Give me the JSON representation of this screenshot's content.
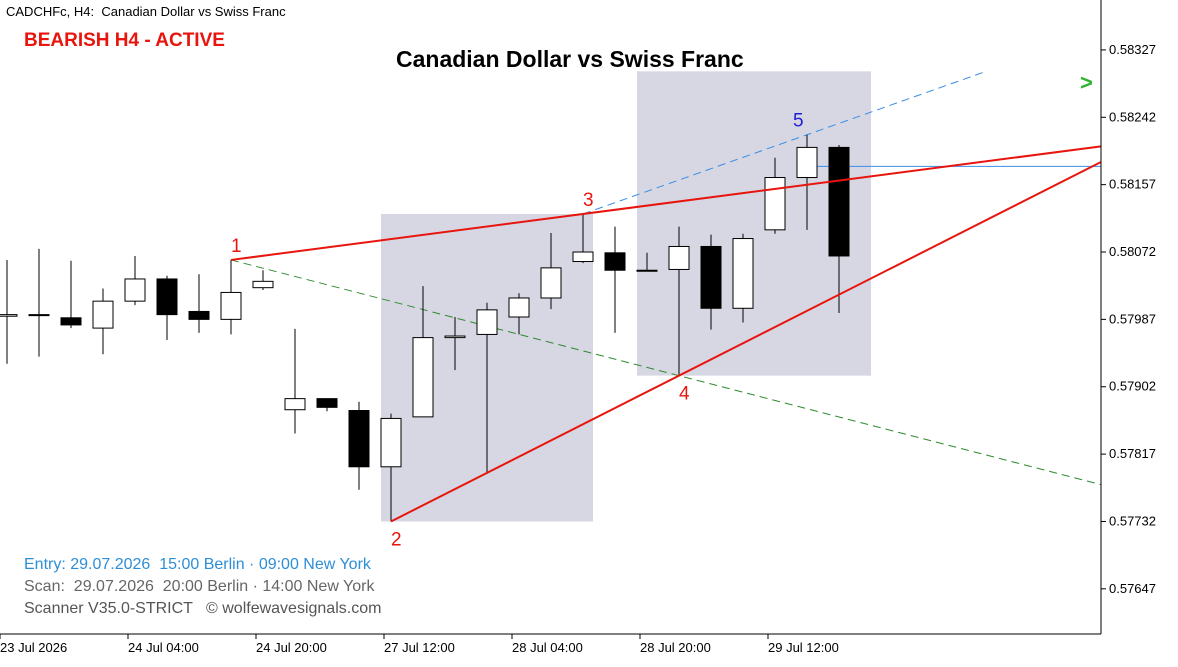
{
  "header": {
    "symbol": "CADCHFc, H4:",
    "name": "Canadian Dollar vs Swiss Franc"
  },
  "signal": {
    "text": "BEARISH H4 - ACTIVE",
    "color": "#e8150e"
  },
  "info": {
    "entry": "Entry: 29.07.2026  15:00 Berlin · 09:00 New York",
    "scan": "Scan:  29.07.2026  20:00 Berlin · 14:00 New York",
    "version": "Scanner V35.0-STRICT   © wolfewavesignals.com"
  },
  "colors": {
    "wave_lines": "#e8150e",
    "projection_1_4": "#2e8b2e",
    "projection_3_5": "#3a8ee6",
    "target_line": "#3a8ee6",
    "zones": "#d3d3e0",
    "arrow": "#2fb52f"
  },
  "arrow_icon": "green-chevron-right",
  "chart_data": {
    "type": "candlestick",
    "title": "Canadian Dollar vs Swiss Franc",
    "ylim": [
      0.5759,
      0.5839
    ],
    "y_ticks": [
      "0.58327",
      "0.58242",
      "0.58157",
      "0.58072",
      "0.57987",
      "0.57902",
      "0.57817",
      "0.57732",
      "0.57647"
    ],
    "x_ticks": [
      {
        "label": "23 Jul 2026",
        "index": 0
      },
      {
        "label": "24 Jul 04:00",
        "index": 4
      },
      {
        "label": "24 Jul 20:00",
        "index": 8
      },
      {
        "label": "27 Jul 12:00",
        "index": 12
      },
      {
        "label": "28 Jul 04:00",
        "index": 16
      },
      {
        "label": "28 Jul 20:00",
        "index": 20
      },
      {
        "label": "29 Jul 12:00",
        "index": 24
      }
    ],
    "candles": [
      {
        "o": 0.57991,
        "h": 0.58062,
        "l": 0.57931,
        "c": 0.57993
      },
      {
        "o": 0.57993,
        "h": 0.58076,
        "l": 0.5794,
        "c": 0.57993
      },
      {
        "o": 0.57989,
        "h": 0.58061,
        "l": 0.57976,
        "c": 0.5798
      },
      {
        "o": 0.57976,
        "h": 0.58026,
        "l": 0.57943,
        "c": 0.5801
      },
      {
        "o": 0.5801,
        "h": 0.58067,
        "l": 0.58005,
        "c": 0.58038
      },
      {
        "o": 0.58038,
        "h": 0.58042,
        "l": 0.57961,
        "c": 0.57993
      },
      {
        "o": 0.57997,
        "h": 0.58044,
        "l": 0.5797,
        "c": 0.57987
      },
      {
        "o": 0.57987,
        "h": 0.58062,
        "l": 0.57968,
        "c": 0.58021
      },
      {
        "o": 0.58027,
        "h": 0.58049,
        "l": 0.58024,
        "c": 0.58035
      },
      {
        "o": 0.57873,
        "h": 0.57975,
        "l": 0.57843,
        "c": 0.57887
      },
      {
        "o": 0.57887,
        "h": 0.57887,
        "l": 0.57871,
        "c": 0.57876
      },
      {
        "o": 0.57872,
        "h": 0.57883,
        "l": 0.57772,
        "c": 0.57801
      },
      {
        "o": 0.57801,
        "h": 0.57868,
        "l": 0.57732,
        "c": 0.57862
      },
      {
        "o": 0.57864,
        "h": 0.58029,
        "l": 0.57864,
        "c": 0.57964
      },
      {
        "o": 0.57964,
        "h": 0.5799,
        "l": 0.57923,
        "c": 0.57966
      },
      {
        "o": 0.57968,
        "h": 0.58008,
        "l": 0.57792,
        "c": 0.57999
      },
      {
        "o": 0.5799,
        "h": 0.5802,
        "l": 0.57968,
        "c": 0.58014
      },
      {
        "o": 0.58014,
        "h": 0.58096,
        "l": 0.58,
        "c": 0.58052
      },
      {
        "o": 0.5806,
        "h": 0.5812,
        "l": 0.58058,
        "c": 0.58072
      },
      {
        "o": 0.58071,
        "h": 0.58104,
        "l": 0.5797,
        "c": 0.58049
      },
      {
        "o": 0.58049,
        "h": 0.58071,
        "l": 0.58049,
        "c": 0.58049
      },
      {
        "o": 0.5805,
        "h": 0.58104,
        "l": 0.57916,
        "c": 0.58079
      },
      {
        "o": 0.58079,
        "h": 0.58094,
        "l": 0.57974,
        "c": 0.58001
      },
      {
        "o": 0.58001,
        "h": 0.58095,
        "l": 0.57983,
        "c": 0.58089
      },
      {
        "o": 0.581,
        "h": 0.58191,
        "l": 0.58095,
        "c": 0.58166
      },
      {
        "o": 0.58166,
        "h": 0.5822,
        "l": 0.581,
        "c": 0.58204
      },
      {
        "o": 0.58204,
        "h": 0.58207,
        "l": 0.57995,
        "c": 0.58067
      }
    ],
    "wave_points": [
      {
        "label": "1",
        "index": 7,
        "price": 0.58062,
        "color": "#e8150e",
        "pos": "above"
      },
      {
        "label": "2",
        "index": 12,
        "price": 0.57732,
        "color": "#e8150e",
        "pos": "below"
      },
      {
        "label": "3",
        "index": 18,
        "price": 0.5812,
        "color": "#e8150e",
        "pos": "above"
      },
      {
        "label": "4",
        "index": 21,
        "price": 0.57916,
        "color": "#e8150e",
        "pos": "below"
      },
      {
        "label": "5",
        "index": 25,
        "price": 0.5822,
        "color": "#1f1fd8",
        "pos": "above"
      }
    ],
    "target_price": 0.5818
  }
}
